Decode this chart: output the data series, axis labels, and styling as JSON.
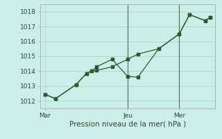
{
  "xlabel": "Pression niveau de la mer( hPa )",
  "background_color": "#cceee8",
  "grid_color": "#aaddcc",
  "line_color": "#2d5a2d",
  "marker_color": "#2d5a2d",
  "ylim": [
    1011.5,
    1018.5
  ],
  "yticks": [
    1012,
    1013,
    1014,
    1015,
    1016,
    1017,
    1018
  ],
  "xtick_labels": [
    "Mar",
    "Jeu",
    "Mer"
  ],
  "vline_color": "#556655",
  "series1_x": [
    0,
    1,
    3,
    4,
    4.5,
    5,
    6.5,
    8,
    9,
    11,
    13,
    14,
    15.5,
    16
  ],
  "series1_y": [
    1012.45,
    1012.15,
    1013.1,
    1013.85,
    1014.0,
    1014.05,
    1014.3,
    1014.8,
    1015.15,
    1015.5,
    1016.5,
    1017.8,
    1017.4,
    1017.6
  ],
  "series2_x": [
    0,
    1,
    3,
    4,
    4.5,
    5,
    6.5,
    8,
    9,
    11,
    13,
    14,
    15.5,
    16
  ],
  "series2_y": [
    1012.45,
    1012.15,
    1013.1,
    1013.85,
    1014.0,
    1014.3,
    1014.8,
    1013.65,
    1013.6,
    1015.5,
    1016.5,
    1017.8,
    1017.4,
    1017.6
  ],
  "xtick_positions": [
    0,
    8,
    13
  ],
  "vlines": [
    8,
    13
  ]
}
